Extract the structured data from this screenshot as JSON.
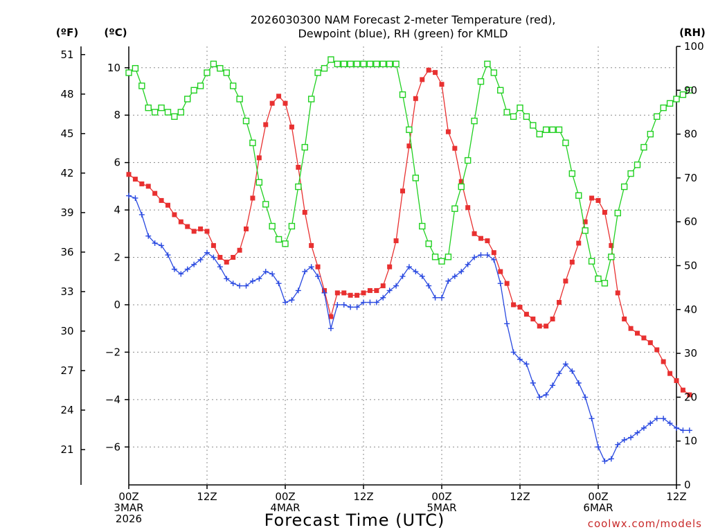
{
  "title_line1": "2026030300 NAM Forecast 2-meter Temperature (red),",
  "title_line2": "Dewpoint (blue), RH (green) for KMLD",
  "unit_f": "(ºF)",
  "unit_c": "(ºC)",
  "unit_rh": "(RH)",
  "xlabel": "Forecast Time (UTC)",
  "credit": "coolwx.com/models",
  "chart_data": {
    "type": "line",
    "x_unit": "forecast hour",
    "x_range": [
      0,
      84
    ],
    "x_ticks": [
      {
        "hour": 0,
        "lines": [
          "00Z",
          "3MAR",
          "2026"
        ]
      },
      {
        "hour": 12,
        "lines": [
          "12Z"
        ]
      },
      {
        "hour": 24,
        "lines": [
          "00Z",
          "4MAR"
        ]
      },
      {
        "hour": 36,
        "lines": [
          "12Z"
        ]
      },
      {
        "hour": 48,
        "lines": [
          "00Z",
          "5MAR"
        ]
      },
      {
        "hour": 60,
        "lines": [
          "12Z"
        ]
      },
      {
        "hour": 72,
        "lines": [
          "00Z",
          "6MAR"
        ]
      },
      {
        "hour": 84,
        "lines": [
          "12Z"
        ]
      }
    ],
    "y_celsius": {
      "range": [
        -7.6,
        10.9
      ],
      "ticks": [
        10,
        8,
        6,
        4,
        2,
        0,
        -2,
        -4,
        -6
      ],
      "labels": [
        "10",
        "8",
        "6",
        "4",
        "2",
        "0",
        "−2",
        "−4",
        "−6"
      ]
    },
    "y_fahrenheit": {
      "ticks": [
        51,
        48,
        45,
        42,
        39,
        36,
        33,
        30,
        27,
        24,
        21
      ]
    },
    "y_rh": {
      "range": [
        0,
        100
      ],
      "ticks": [
        100,
        90,
        80,
        70,
        60,
        50,
        40,
        30,
        20,
        10,
        0
      ]
    },
    "grid": true,
    "series": [
      {
        "key": "temperature",
        "color": "#e83030",
        "marker": "filled-square",
        "axis": "celsius",
        "values": [
          5.5,
          5.3,
          5.1,
          5.0,
          4.7,
          4.4,
          4.2,
          3.8,
          3.5,
          3.3,
          3.1,
          3.2,
          3.1,
          2.5,
          2.0,
          1.8,
          2.0,
          2.3,
          3.2,
          4.5,
          6.2,
          7.6,
          8.5,
          8.8,
          8.5,
          7.5,
          5.8,
          3.9,
          2.5,
          1.6,
          0.6,
          -0.5,
          0.5,
          0.5,
          0.4,
          0.4,
          0.5,
          0.6,
          0.6,
          0.8,
          1.6,
          2.7,
          4.8,
          6.7,
          8.7,
          9.5,
          9.9,
          9.8,
          9.3,
          7.3,
          6.6,
          5.2,
          4.1,
          3.0,
          2.8,
          2.7,
          2.2,
          1.4,
          0.9,
          0.0,
          -0.1,
          -0.4,
          -0.6,
          -0.9,
          -0.9,
          -0.6,
          0.1,
          1.0,
          1.8,
          2.6,
          3.5,
          4.5,
          4.4,
          3.9,
          2.5,
          0.5,
          -0.6,
          -1.0,
          -1.2,
          -1.4,
          -1.6,
          -1.9,
          -2.4,
          -2.9,
          -3.2,
          -3.6,
          -3.8
        ]
      },
      {
        "key": "dewpoint",
        "color": "#2848e0",
        "marker": "plus",
        "axis": "celsius",
        "values": [
          4.6,
          4.5,
          3.8,
          2.9,
          2.6,
          2.5,
          2.1,
          1.5,
          1.3,
          1.5,
          1.7,
          1.9,
          2.2,
          2.0,
          1.6,
          1.1,
          0.9,
          0.8,
          0.8,
          1.0,
          1.1,
          1.4,
          1.3,
          0.9,
          0.1,
          0.2,
          0.6,
          1.4,
          1.6,
          1.2,
          0.5,
          -1.0,
          0.0,
          0.0,
          -0.1,
          -0.1,
          0.1,
          0.1,
          0.1,
          0.3,
          0.6,
          0.8,
          1.2,
          1.6,
          1.4,
          1.2,
          0.8,
          0.3,
          0.3,
          1.0,
          1.2,
          1.4,
          1.7,
          2.0,
          2.1,
          2.1,
          1.9,
          0.9,
          -0.8,
          -2.0,
          -2.3,
          -2.5,
          -3.3,
          -3.9,
          -3.8,
          -3.4,
          -2.9,
          -2.5,
          -2.8,
          -3.3,
          -3.9,
          -4.8,
          -6.0,
          -6.6,
          -6.5,
          -5.9,
          -5.7,
          -5.6,
          -5.4,
          -5.2,
          -5.0,
          -4.8,
          -4.8,
          -5.0,
          -5.2,
          -5.3,
          -5.3
        ]
      },
      {
        "key": "rh",
        "color": "#20d020",
        "marker": "open-square",
        "axis": "rh",
        "values": [
          94,
          95,
          91,
          86,
          85,
          86,
          85,
          84,
          85,
          88,
          90,
          91,
          94,
          96,
          95,
          94,
          91,
          88,
          83,
          78,
          69,
          64,
          59,
          56,
          55,
          59,
          68,
          77,
          88,
          94,
          95,
          97,
          96,
          96,
          96,
          96,
          96,
          96,
          96,
          96,
          96,
          96,
          89,
          81,
          70,
          59,
          55,
          52,
          51,
          52,
          63,
          68,
          74,
          83,
          92,
          96,
          94,
          90,
          85,
          84,
          86,
          84,
          82,
          80,
          81,
          81,
          81,
          78,
          71,
          66,
          58,
          51,
          47,
          46,
          52,
          62,
          68,
          71,
          73,
          77,
          80,
          84,
          86,
          87,
          88,
          89,
          90
        ]
      }
    ]
  }
}
